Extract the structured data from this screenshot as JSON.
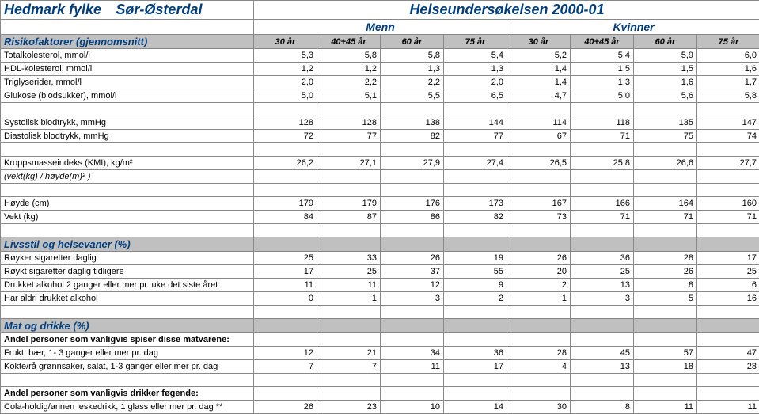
{
  "header": {
    "county": "Hedmark fylke",
    "region": "Sør-Østerdal",
    "survey": "Helseundersøkelsen  2000-01",
    "gender_m": "Menn",
    "gender_f": "Kvinner",
    "ages": [
      "30 år",
      "40+45 år",
      "60 år",
      "75 år",
      "30 år",
      "40+45 år",
      "60 år",
      "75 år"
    ]
  },
  "sections": {
    "risk": {
      "title": "Risikofaktorer  (gjennomsnitt)",
      "rows": [
        {
          "label": "Totalkolesterol,  mmol/l",
          "v": [
            "5,3",
            "5,8",
            "5,8",
            "5,4",
            "5,2",
            "5,4",
            "5,9",
            "6,0"
          ]
        },
        {
          "label": "HDL-kolesterol,  mmol/l",
          "v": [
            "1,2",
            "1,2",
            "1,3",
            "1,3",
            "1,4",
            "1,5",
            "1,5",
            "1,6"
          ]
        },
        {
          "label": "Triglyserider,  mmol/l",
          "v": [
            "2,0",
            "2,2",
            "2,2",
            "2,0",
            "1,4",
            "1,3",
            "1,6",
            "1,7"
          ]
        },
        {
          "label": "Glukose (blodsukker), mmol/l",
          "v": [
            "5,0",
            "5,1",
            "5,5",
            "6,5",
            "4,7",
            "5,0",
            "5,6",
            "5,8"
          ]
        }
      ]
    },
    "bp": {
      "rows": [
        {
          "label": "Systolisk blodtrykk,  mmHg",
          "v": [
            "128",
            "128",
            "138",
            "144",
            "114",
            "118",
            "135",
            "147"
          ]
        },
        {
          "label": "Diastolisk blodtrykk,  mmHg",
          "v": [
            "72",
            "77",
            "82",
            "77",
            "67",
            "71",
            "75",
            "74"
          ]
        }
      ]
    },
    "bmi": {
      "rows": [
        {
          "label": "Kroppsmasseindeks (KMI),  kg/m²",
          "v": [
            "26,2",
            "27,1",
            "27,9",
            "27,4",
            "26,5",
            "25,8",
            "26,6",
            "27,7"
          ]
        },
        {
          "label": "(vekt(kg) / høyde(m)² )",
          "italic": true,
          "v": [
            "",
            "",
            "",
            "",
            "",
            "",
            "",
            ""
          ]
        }
      ]
    },
    "hw": {
      "rows": [
        {
          "label": "Høyde (cm)",
          "v": [
            "179",
            "179",
            "176",
            "173",
            "167",
            "166",
            "164",
            "160"
          ]
        },
        {
          "label": "Vekt (kg)",
          "v": [
            "84",
            "87",
            "86",
            "82",
            "73",
            "71",
            "71",
            "71"
          ]
        }
      ]
    },
    "lifestyle": {
      "title": "Livsstil og helsevaner  (%)",
      "rows": [
        {
          "label": "Røyker sigaretter daglig",
          "v": [
            "25",
            "33",
            "26",
            "19",
            "26",
            "36",
            "28",
            "17"
          ]
        },
        {
          "label": "Røykt sigaretter daglig tidligere",
          "v": [
            "17",
            "25",
            "37",
            "55",
            "20",
            "25",
            "26",
            "25"
          ]
        },
        {
          "label": "Drukket alkohol 2 ganger eller mer pr. uke det siste året",
          "v": [
            "11",
            "11",
            "12",
            "9",
            "2",
            "13",
            "8",
            "6"
          ]
        },
        {
          "label": "Har aldri drukket alkohol",
          "v": [
            "0",
            "1",
            "3",
            "2",
            "1",
            "3",
            "5",
            "16"
          ]
        }
      ]
    },
    "food": {
      "title": "Mat og drikke  (%)",
      "sub1": "Andel personer som vanligvis spiser disse matvarene:",
      "rows1": [
        {
          "label": "Frukt, bær,  1- 3 ganger eller mer pr. dag",
          "v": [
            "12",
            "21",
            "34",
            "36",
            "28",
            "45",
            "57",
            "47"
          ]
        },
        {
          "label": "Kokte/rå grønnsaker, salat, 1-3 ganger eller mer pr. dag",
          "v": [
            "7",
            "7",
            "11",
            "17",
            "4",
            "13",
            "18",
            "28"
          ]
        }
      ],
      "sub2": "Andel personer som vanligvis drikker føgende:",
      "rows2": [
        {
          "label": "Cola-holdig/annen leskedrikk, 1 glass eller mer pr. dag   **",
          "v": [
            "26",
            "23",
            "10",
            "14",
            "30",
            "8",
            "11",
            "11"
          ]
        }
      ]
    }
  }
}
